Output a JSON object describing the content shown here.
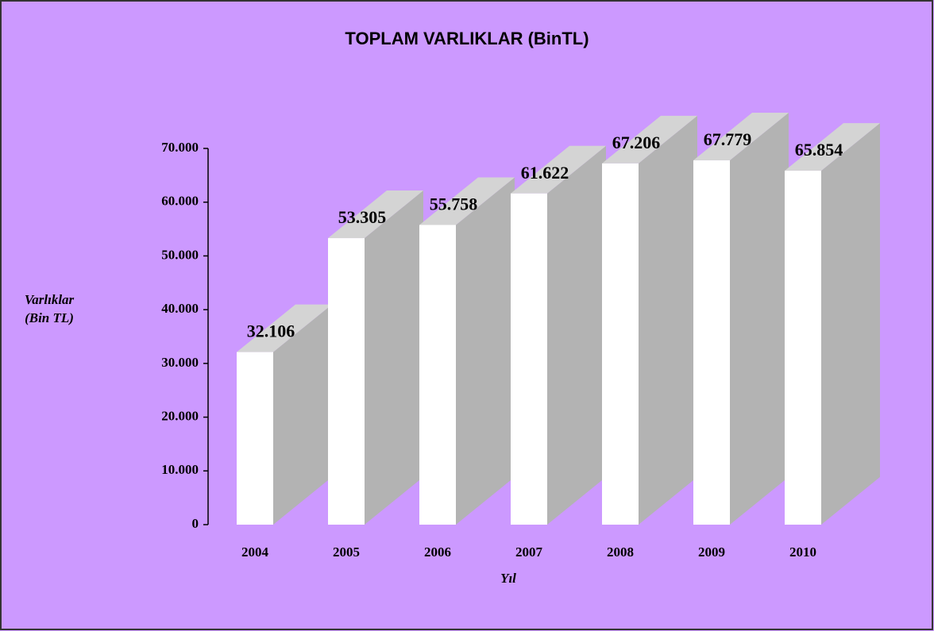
{
  "chart_data": {
    "type": "bar3d",
    "title": "TOPLAM VARLIKLAR (BinTL)",
    "xlabel": "Yıl",
    "ylabel": "Varlıklar (Bin TL)",
    "categories": [
      "2004",
      "2005",
      "2006",
      "2007",
      "2008",
      "2009",
      "2010"
    ],
    "values": [
      32106,
      53305,
      55758,
      61622,
      67206,
      67779,
      65854
    ],
    "value_labels": [
      "32.106",
      "53.305",
      "55.758",
      "61.622",
      "67.206",
      "67.779",
      "65.854"
    ],
    "color": "#ffffff",
    "ylim": [
      0,
      70000
    ],
    "yticks": [
      0,
      {
        "value": 10000,
        "label": "10.000"
      },
      {
        "value": 20000,
        "label": "20.000"
      },
      {
        "value": 30000,
        "label": "30.000"
      },
      {
        "value": 40000,
        "label": "40.000"
      },
      {
        "value": 50000,
        "label": "50.000"
      },
      {
        "value": 60000,
        "label": "60.000"
      },
      {
        "value": 70000,
        "label": "70.000"
      }
    ]
  }
}
